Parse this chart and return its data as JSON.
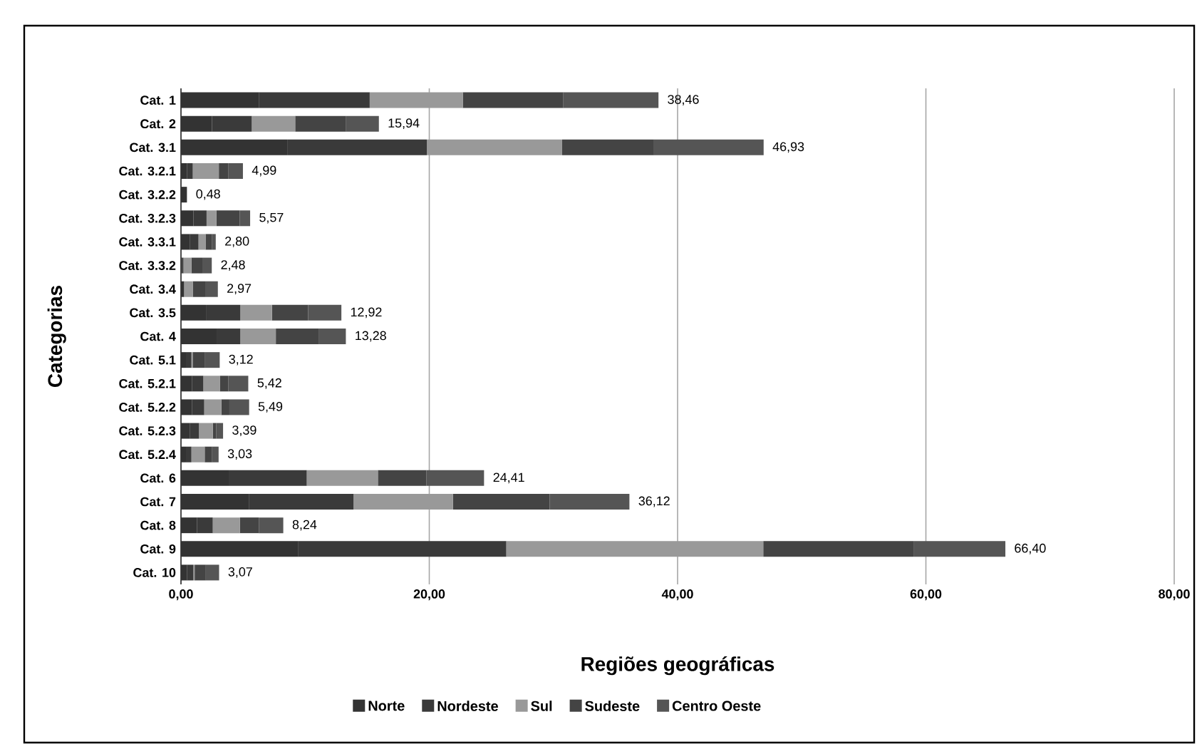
{
  "chart_data": {
    "type": "bar",
    "orientation": "horizontal",
    "stacked": true,
    "xlabel": "Regiões geográficas",
    "ylabel": "Categorias",
    "categories": [
      "Cat. 1",
      "Cat. 2",
      "Cat. 3.1",
      "Cat. 3.2.1",
      "Cat. 3.2.2",
      "Cat. 3.2.3",
      "Cat. 3.3.1",
      "Cat. 3.3.2",
      "Cat. 3.4",
      "Cat. 3.5",
      "Cat. 4",
      "Cat. 5.1",
      "Cat. 5.2.1",
      "Cat. 5.2.2",
      "Cat. 5.2.3",
      "Cat. 5.2.4",
      "Cat. 6",
      "Cat. 7",
      "Cat. 8",
      "Cat. 9",
      "Cat. 10"
    ],
    "series": [
      {
        "name": "Norte",
        "color": "#333333",
        "values": [
          6.3,
          2.5,
          8.6,
          0.5,
          0.48,
          1.0,
          0.7,
          0.1,
          0.25,
          2.06,
          2.87,
          0.4,
          0.9,
          0.9,
          0.7,
          0.4,
          3.9,
          5.46,
          1.3,
          9.46,
          0.5
        ]
      },
      {
        "name": "Nordeste",
        "color": "#3a3a3a",
        "values": [
          8.9,
          3.2,
          11.2,
          0.45,
          null,
          1.06,
          0.71,
          0.1,
          null,
          2.72,
          1.91,
          0.44,
          0.9,
          0.97,
          0.75,
          0.44,
          6.23,
          8.44,
          1.26,
          16.74,
          0.5
        ]
      },
      {
        "name": "Sul",
        "color": "#999999",
        "values": [
          7.5,
          3.5,
          10.9,
          2.1,
          null,
          0.8,
          0.57,
          0.64,
          0.7,
          2.55,
          2.86,
          0.1,
          1.33,
          1.38,
          1.11,
          1.07,
          5.73,
          8.0,
          2.18,
          20.7,
          0.1
        ]
      },
      {
        "name": "Sudeste",
        "color": "#444444",
        "values": [
          8.1,
          4.1,
          7.4,
          0.75,
          null,
          1.87,
          0.5,
          0.88,
          1.0,
          2.91,
          3.44,
          1.0,
          0.69,
          0.65,
          0.27,
          0.6,
          3.9,
          7.8,
          1.53,
          12.1,
          0.9
        ]
      },
      {
        "name": "Centro Oeste",
        "color": "#555555",
        "values": [
          7.66,
          2.64,
          8.83,
          1.19,
          null,
          0.84,
          0.32,
          0.76,
          1.02,
          2.68,
          2.2,
          1.18,
          1.6,
          1.59,
          0.56,
          0.52,
          4.65,
          6.42,
          1.97,
          7.4,
          1.07
        ]
      }
    ],
    "totals": [
      "38,46",
      "15,94",
      "46,93",
      "4,99",
      "0,48",
      "5,57",
      "2,80",
      "2,48",
      "2,97",
      "12,92",
      "13,28",
      "3,12",
      "5,42",
      "5,49",
      "3,39",
      "3,03",
      "24,41",
      "36,12",
      "8,24",
      "66,40",
      "3,07"
    ],
    "xlim": [
      0,
      80
    ],
    "xticks": [
      {
        "value": 0,
        "label": "0,00"
      },
      {
        "value": 20,
        "label": "20,00"
      },
      {
        "value": 40,
        "label": "40,00"
      },
      {
        "value": 60,
        "label": "60,00"
      },
      {
        "value": 80,
        "label": "80,00"
      }
    ],
    "grid": "x",
    "legend": "bottom"
  }
}
